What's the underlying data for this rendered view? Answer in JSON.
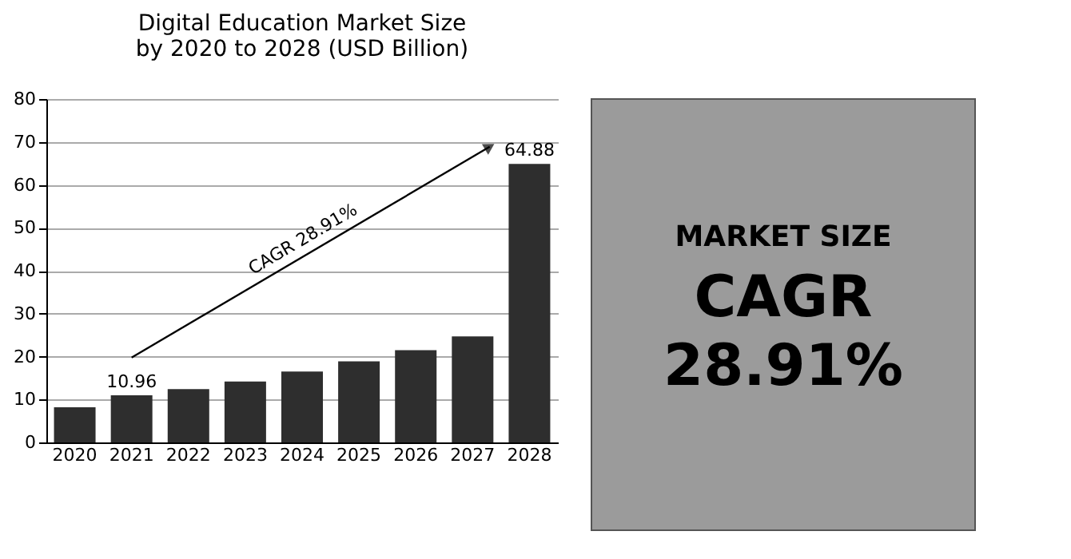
{
  "chart_data": {
    "type": "bar",
    "title": "Digital Education Market Size\nby 2020 to 2028 (USD Billion)",
    "categories": [
      "2020",
      "2021",
      "2022",
      "2023",
      "2024",
      "2025",
      "2026",
      "2027",
      "2028"
    ],
    "values": [
      8.2,
      10.96,
      12.4,
      14.2,
      16.5,
      18.9,
      21.5,
      24.7,
      64.88
    ],
    "value_labels": [
      null,
      "10.96",
      null,
      null,
      null,
      null,
      null,
      null,
      "64.88"
    ],
    "color": "#2e2e2e",
    "ylim": [
      0,
      80
    ],
    "yticks": [
      0,
      10,
      20,
      30,
      40,
      50,
      60,
      70,
      80
    ],
    "grid": "y",
    "annotations": [
      "CAGR 28.91%",
      "MARKET SIZE",
      "CAGR",
      "28.91%"
    ]
  }
}
